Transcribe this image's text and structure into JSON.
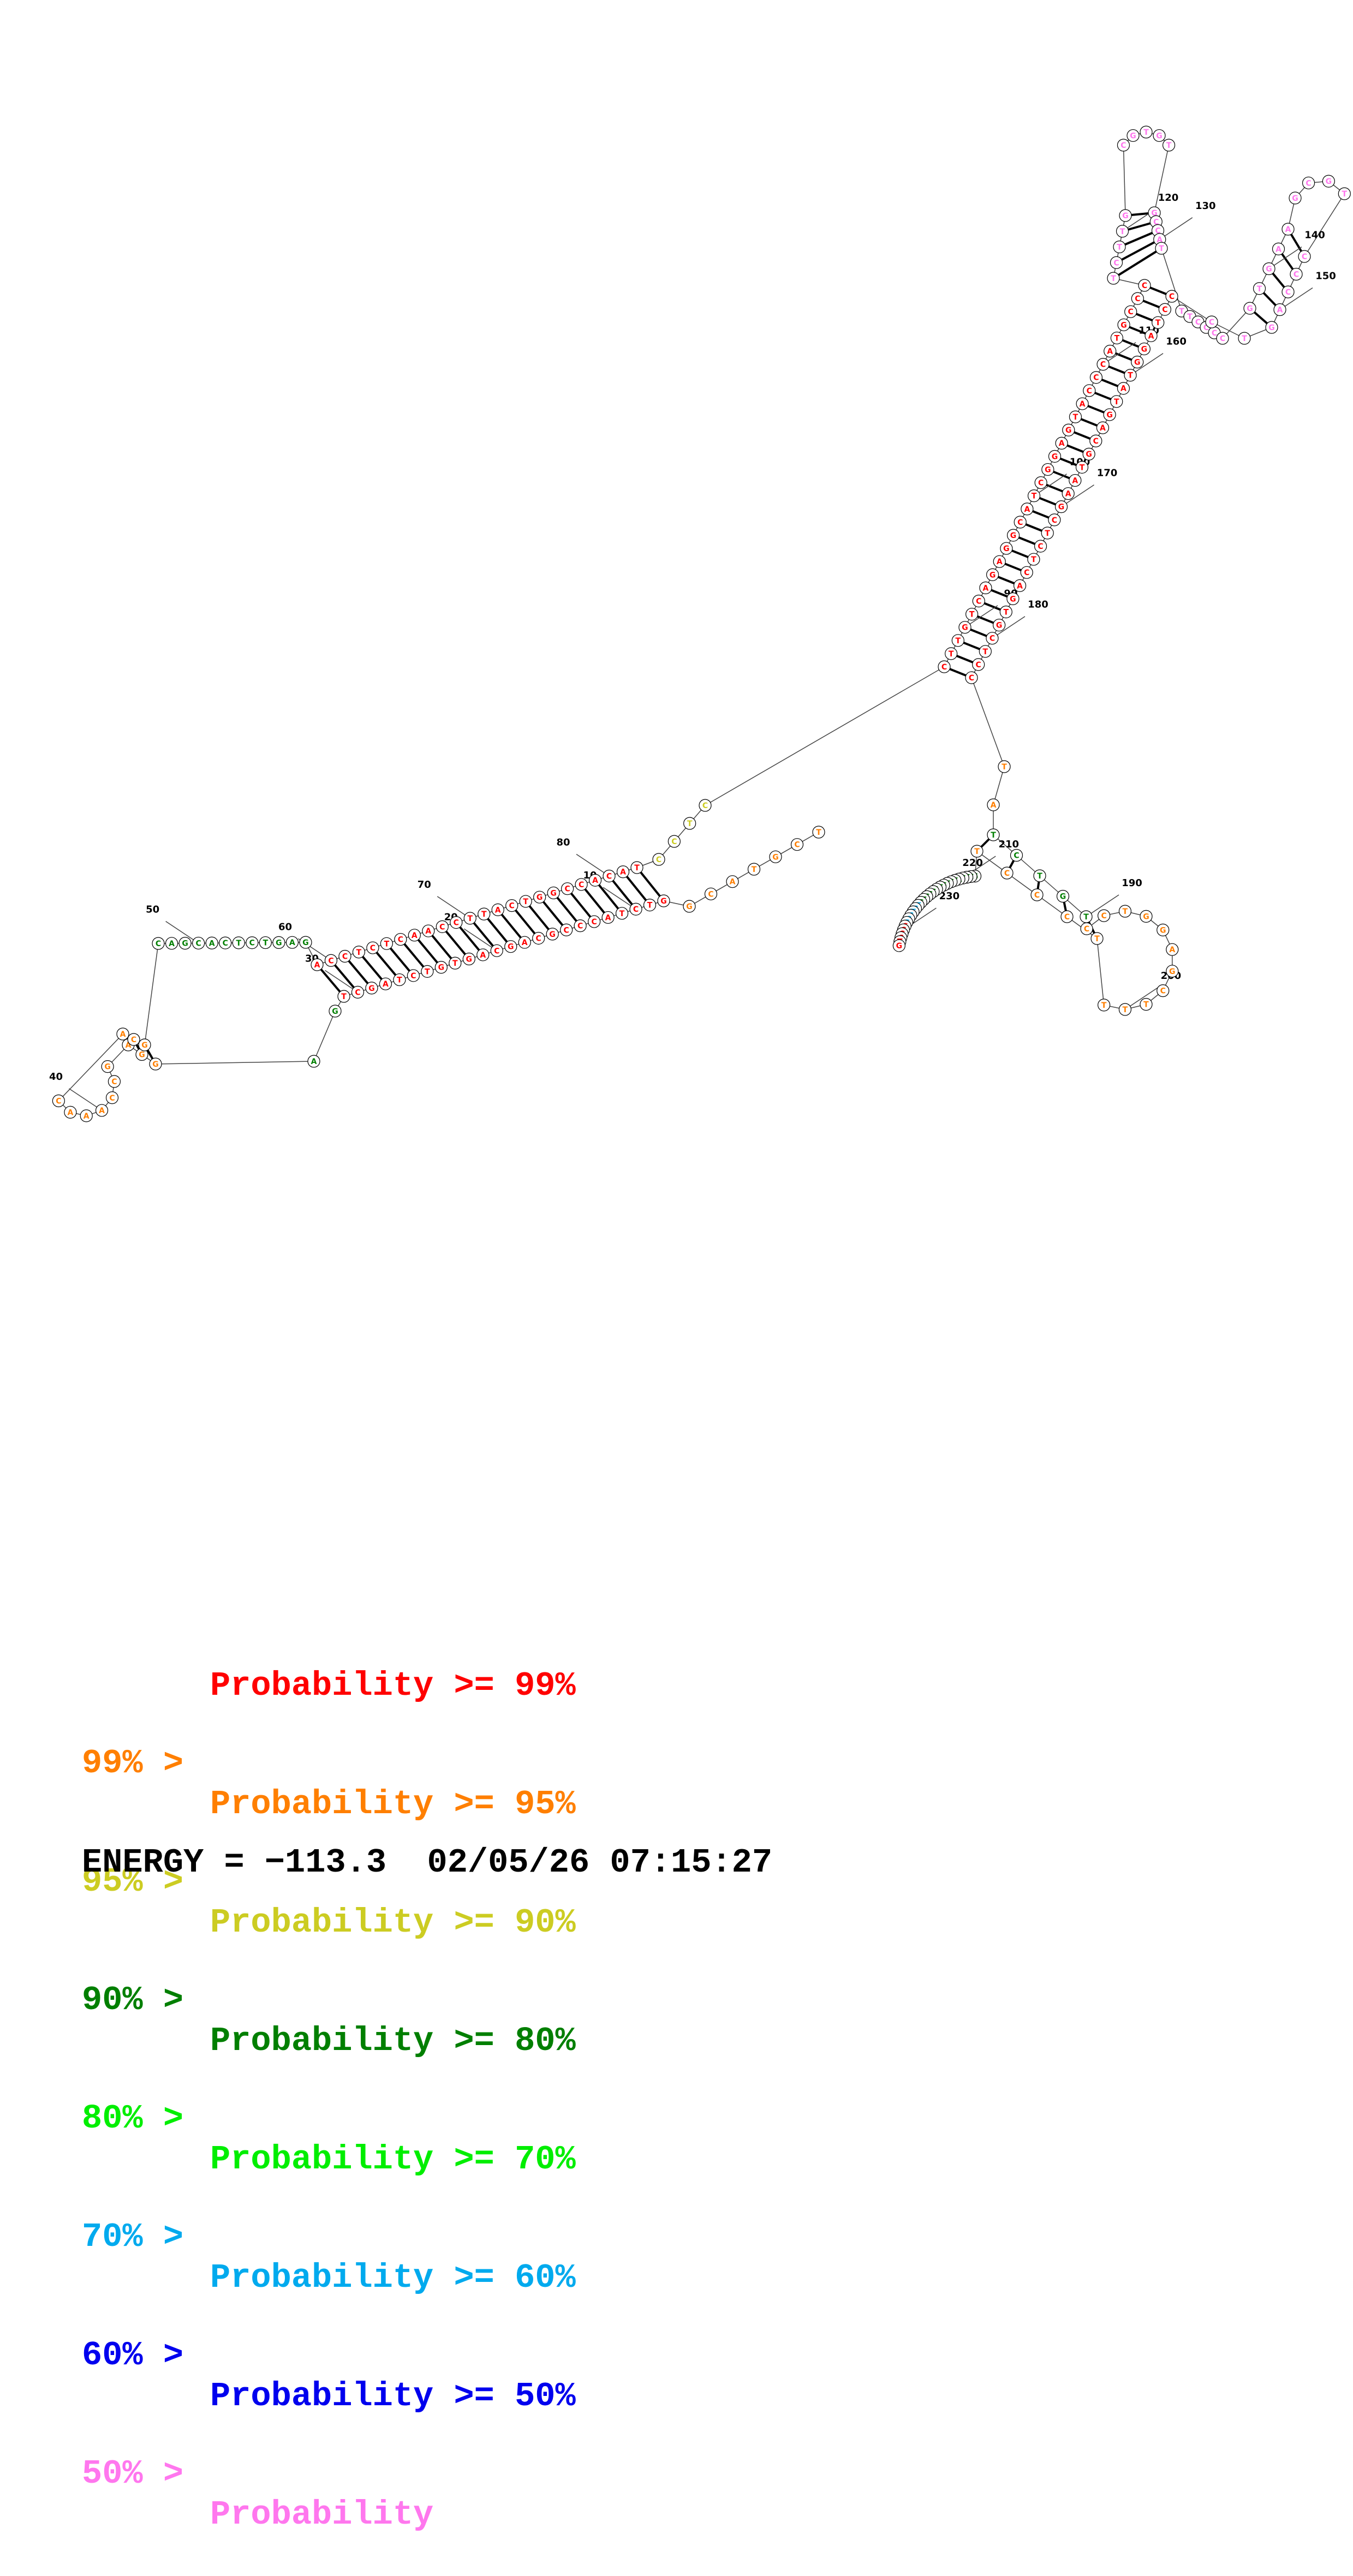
{
  "sequence": "TCGTACGGTCTACCCGCAGCAGTGTCTAGCTGAGGAGCCAAACACGCAGCACTCTGAGACCTCTCAACCTTACTGGCCACATCCTCCTTGTCAGAGGCATCGGAGTACCCATGCCCTCTTGCGTGTGCCATTTCCCCGTGAAGCGTCCCAGTCCCTAGGTATGACGTAAGCTCTCAGTGCTCCTATCTGTCCTGGAGCTTTTCCCTGCTCATCTGTAGCCTGTCTCGGCCGCTGCCCAA",
  "pairs": [
    [
      8,
      82
    ],
    [
      9,
      81
    ],
    [
      10,
      80
    ],
    [
      11,
      79
    ],
    [
      12,
      78
    ],
    [
      13,
      77
    ],
    [
      14,
      76
    ],
    [
      15,
      75
    ],
    [
      16,
      74
    ],
    [
      17,
      73
    ],
    [
      18,
      72
    ],
    [
      19,
      71
    ],
    [
      20,
      70
    ],
    [
      21,
      69
    ],
    [
      22,
      68
    ],
    [
      23,
      67
    ],
    [
      24,
      66
    ],
    [
      25,
      65
    ],
    [
      26,
      64
    ],
    [
      27,
      63
    ],
    [
      28,
      62
    ],
    [
      29,
      61
    ],
    [
      30,
      60
    ],
    [
      31,
      59
    ],
    [
      34,
      46
    ],
    [
      35,
      45
    ],
    [
      36,
      44
    ],
    [
      87,
      183
    ],
    [
      88,
      182
    ],
    [
      89,
      181
    ],
    [
      90,
      180
    ],
    [
      91,
      179
    ],
    [
      92,
      178
    ],
    [
      93,
      177
    ],
    [
      94,
      176
    ],
    [
      95,
      175
    ],
    [
      96,
      174
    ],
    [
      97,
      173
    ],
    [
      98,
      172
    ],
    [
      99,
      171
    ],
    [
      100,
      170
    ],
    [
      101,
      169
    ],
    [
      102,
      168
    ],
    [
      103,
      167
    ],
    [
      104,
      166
    ],
    [
      105,
      165
    ],
    [
      106,
      164
    ],
    [
      107,
      163
    ],
    [
      108,
      162
    ],
    [
      109,
      161
    ],
    [
      110,
      160
    ],
    [
      111,
      159
    ],
    [
      112,
      158
    ],
    [
      113,
      157
    ],
    [
      114,
      156
    ],
    [
      115,
      155
    ],
    [
      116,
      154
    ],
    [
      117,
      131
    ],
    [
      118,
      130
    ],
    [
      119,
      129
    ],
    [
      120,
      128
    ],
    [
      121,
      127
    ],
    [
      138,
      151
    ],
    [
      139,
      150
    ],
    [
      140,
      149
    ],
    [
      141,
      148
    ],
    [
      142,
      147
    ],
    [
      186,
      206
    ],
    [
      187,
      205
    ],
    [
      188,
      204
    ],
    [
      189,
      203
    ],
    [
      190,
      202
    ]
  ],
  "tick_labels": [
    {
      "n": 10,
      "text": "10"
    },
    {
      "n": 20,
      "text": "20"
    },
    {
      "n": 30,
      "text": "30"
    },
    {
      "n": 40,
      "text": "40"
    },
    {
      "n": 50,
      "text": "50"
    },
    {
      "n": 60,
      "text": "60"
    },
    {
      "n": 70,
      "text": "70"
    },
    {
      "n": 80,
      "text": "80"
    },
    {
      "n": 90,
      "text": "90"
    },
    {
      "n": 100,
      "text": "100"
    },
    {
      "n": 110,
      "text": "110"
    },
    {
      "n": 120,
      "text": "120"
    },
    {
      "n": 130,
      "text": "130"
    },
    {
      "n": 140,
      "text": "140"
    },
    {
      "n": 150,
      "text": "150"
    },
    {
      "n": 160,
      "text": "160"
    },
    {
      "n": 170,
      "text": "170"
    },
    {
      "n": 180,
      "text": "180"
    },
    {
      "n": 190,
      "text": "190"
    },
    {
      "n": 200,
      "text": "200"
    },
    {
      "n": 210,
      "text": "210"
    },
    {
      "n": 220,
      "text": "220"
    },
    {
      "n": 230,
      "text": "230"
    }
  ],
  "probability_colors": {
    "p99": "#ff0000",
    "p95": "#ff7f00",
    "p90": "#cccc22",
    "p80": "#007f00",
    "p70": "#00ee00",
    "p60": "#00aaee",
    "p50": "#0000ee",
    "plow": "#ff77ee"
  },
  "legend": [
    {
      "prefix": "",
      "main": "Probability >= 99%",
      "color": "#ff0000"
    },
    {
      "prefix": "99% >",
      "main": "Probability >= 95%",
      "color": "#ff7f00"
    },
    {
      "prefix": "95% >",
      "main": "Probability >= 90%",
      "color": "#cccc22"
    },
    {
      "prefix": "90% >",
      "main": "Probability >= 80%",
      "color": "#007f00"
    },
    {
      "prefix": "80% >",
      "main": "Probability >= 70%",
      "color": "#00ee00"
    },
    {
      "prefix": "70% >",
      "main": "Probability >= 60%",
      "color": "#00aaee"
    },
    {
      "prefix": "60% >",
      "main": "Probability >= 50%",
      "color": "#0000ee"
    },
    {
      "prefix": "50% >",
      "main": "Probability",
      "color": "#ff77ee"
    }
  ],
  "energy": {
    "label": "ENERGY = −113.3",
    "timestamp": "02/05/26 07:15:27"
  }
}
